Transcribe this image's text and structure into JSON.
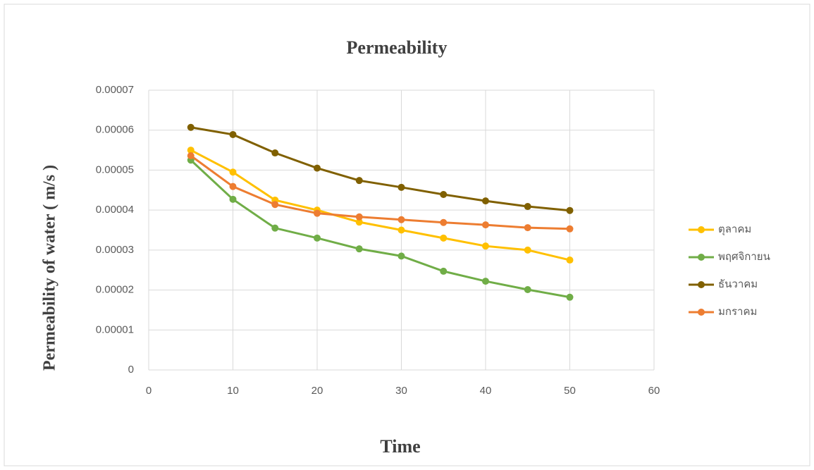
{
  "chart_data": {
    "type": "line",
    "title": "Permeability",
    "x_label": "Time",
    "y_label": "Permeability of water ( m/s )",
    "xlim": [
      0,
      60
    ],
    "xticks": [
      0,
      10,
      20,
      30,
      40,
      50,
      60
    ],
    "ylim": [
      0,
      7e-05
    ],
    "yticks": [
      0,
      1e-05,
      2e-05,
      3e-05,
      4e-05,
      5e-05,
      6e-05,
      7e-05
    ],
    "grid": true,
    "legend": "right",
    "x": [
      5,
      10,
      15,
      20,
      25,
      30,
      35,
      40,
      45,
      50
    ],
    "series": [
      {
        "name": "ตุลาคม",
        "color": "#ffc000",
        "values": [
          5.5e-05,
          4.95e-05,
          4.25e-05,
          4e-05,
          3.7e-05,
          3.5e-05,
          3.3e-05,
          3.1e-05,
          3e-05,
          2.75e-05
        ]
      },
      {
        "name": "พฤศจิกายน",
        "color": "#70ad47",
        "values": [
          5.25e-05,
          4.27e-05,
          3.55e-05,
          3.3e-05,
          3.03e-05,
          2.85e-05,
          2.47e-05,
          2.22e-05,
          2.01e-05,
          1.82e-05
        ]
      },
      {
        "name": "ธันวาคม",
        "color": "#806000",
        "values": [
          6.07e-05,
          5.89e-05,
          5.43e-05,
          5.05e-05,
          4.74e-05,
          4.57e-05,
          4.39e-05,
          4.23e-05,
          4.09e-05,
          3.99e-05
        ]
      },
      {
        "name": "มกราคม",
        "color": "#ed7d31",
        "values": [
          5.36e-05,
          4.59e-05,
          4.14e-05,
          3.92e-05,
          3.83e-05,
          3.76e-05,
          3.69e-05,
          3.63e-05,
          3.56e-05,
          3.53e-05
        ]
      }
    ]
  }
}
